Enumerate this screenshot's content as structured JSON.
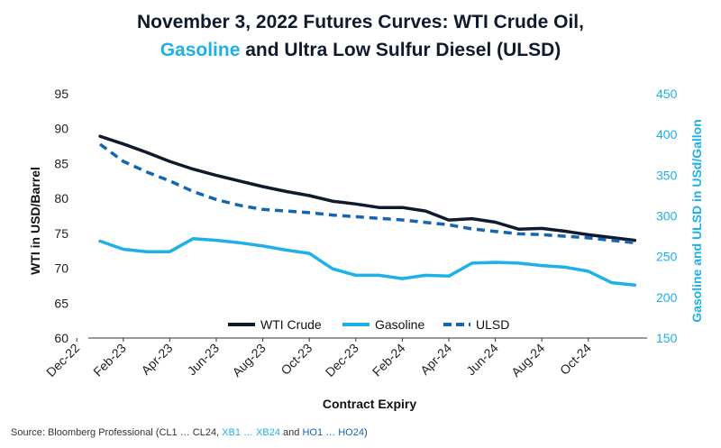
{
  "chart_data": {
    "type": "line",
    "title_line1": "November 3, 2022 Futures Curves: WTI Crude Oil,",
    "title_line2_part1": "Gasoline",
    "title_line2_part2": " and Ultra Low Sulfur Diesel (ULSD)",
    "xlabel": "Contract Expiry",
    "ylabel_left": "WTI in USD/Barrel",
    "ylabel_right": "Gasoline and ULSD in USd/Gallon",
    "ylim_left": [
      60,
      95
    ],
    "ylim_right": [
      150,
      450
    ],
    "yticks_left": [
      "60",
      "65",
      "70",
      "75",
      "80",
      "85",
      "90",
      "95"
    ],
    "yticks_right": [
      "150",
      "200",
      "250",
      "300",
      "350",
      "400",
      "450"
    ],
    "xtick_labels": [
      "Dec-22",
      "Feb-23",
      "Apr-23",
      "Jun-23",
      "Aug-23",
      "Oct-23",
      "Dec-23",
      "Feb-24",
      "Apr-24",
      "Jun-24",
      "Aug-24",
      "Oct-24"
    ],
    "x": [
      "Jan-23",
      "Feb-23",
      "Mar-23",
      "Apr-23",
      "May-23",
      "Jun-23",
      "Jul-23",
      "Aug-23",
      "Sep-23",
      "Oct-23",
      "Nov-23",
      "Dec-23",
      "Jan-24",
      "Feb-24",
      "Mar-24",
      "Apr-24",
      "May-24",
      "Jun-24",
      "Jul-24",
      "Aug-24",
      "Sep-24",
      "Oct-24",
      "Nov-24",
      "Dec-24"
    ],
    "series": [
      {
        "name": "WTI Crude",
        "axis": "left",
        "color": "#0f1b2d",
        "style": "solid",
        "values": [
          88.9,
          87.8,
          86.6,
          85.3,
          84.2,
          83.3,
          82.5,
          81.7,
          81.0,
          80.4,
          79.6,
          79.2,
          78.7,
          78.7,
          78.2,
          76.9,
          77.1,
          76.6,
          75.6,
          75.7,
          75.3,
          74.8,
          74.4,
          74.0
        ]
      },
      {
        "name": "Gasoline",
        "axis": "right",
        "color": "#1eb0e8",
        "style": "solid",
        "values": [
          269,
          259,
          256,
          256,
          272,
          270,
          267,
          263,
          258,
          254,
          235,
          227,
          227,
          223,
          227,
          226,
          242,
          243,
          242,
          239,
          237,
          232,
          218,
          215
        ]
      },
      {
        "name": "ULSD",
        "axis": "right",
        "color": "#1466b0",
        "style": "dashed",
        "values": [
          388,
          367,
          354,
          343,
          330,
          320,
          313,
          308,
          306,
          304,
          301,
          299,
          297,
          295,
          292,
          289,
          284,
          281,
          278,
          277,
          275,
          273,
          270,
          267
        ]
      }
    ],
    "legend_position": "bottom-center",
    "grid": false,
    "source_prefix": "Source: Bloomberg Professional (CL1 … CL24, ",
    "source_xb": "XB1 … XB24",
    "source_and": " and ",
    "source_ho": "HO1 … HO24",
    "source_suffix": ")",
    "colors": {
      "title": "#0f1b2d",
      "gasoline": "#1eb0e8",
      "ulsd": "#1466b0",
      "axis_left": "#222222",
      "axis_right": "#1eb0e8"
    }
  }
}
